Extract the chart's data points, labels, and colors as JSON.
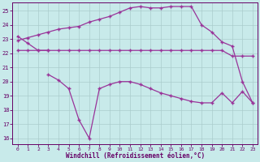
{
  "background_color": "#c8eaea",
  "grid_color": "#aacccc",
  "line_color": "#993399",
  "xlabel": "Windchill (Refroidissement éolien,°C)",
  "xlabel_color": "#660066",
  "tick_color": "#660066",
  "xlim_min": -0.5,
  "xlim_max": 23.5,
  "ylim_min": 15.6,
  "ylim_max": 25.6,
  "yticks": [
    16,
    17,
    18,
    19,
    20,
    21,
    22,
    23,
    24,
    25
  ],
  "xticks": [
    0,
    1,
    2,
    3,
    4,
    5,
    6,
    7,
    8,
    9,
    10,
    11,
    12,
    13,
    14,
    15,
    16,
    17,
    18,
    19,
    20,
    21,
    22,
    23
  ],
  "line1_x": [
    0,
    1,
    2,
    3
  ],
  "line1_y": [
    23.2,
    22.7,
    22.2,
    22.2
  ],
  "line2_x": [
    0,
    1,
    2,
    3,
    4,
    5,
    6,
    7,
    8,
    9,
    10,
    11,
    12,
    13,
    14,
    15,
    16,
    17,
    18,
    19,
    20,
    21,
    22,
    23
  ],
  "line2_y": [
    22.2,
    22.2,
    22.2,
    22.2,
    22.2,
    22.2,
    22.2,
    22.2,
    22.2,
    22.2,
    22.2,
    22.2,
    22.2,
    22.2,
    22.2,
    22.2,
    22.2,
    22.2,
    22.2,
    22.2,
    22.2,
    21.8,
    21.8,
    21.8
  ],
  "line3_x": [
    3,
    4,
    5,
    6,
    7,
    8,
    9,
    10,
    11,
    12,
    13,
    14,
    15,
    16,
    17,
    18,
    19,
    20,
    21,
    22,
    23
  ],
  "line3_y": [
    20.5,
    20.1,
    19.5,
    17.3,
    16.0,
    19.5,
    19.8,
    20.0,
    20.0,
    19.8,
    19.5,
    19.2,
    19.0,
    18.8,
    18.6,
    18.5,
    18.5,
    19.2,
    18.5,
    19.3,
    18.5
  ],
  "line4_x": [
    0,
    1,
    2,
    3,
    4,
    5,
    6,
    7,
    8,
    9,
    10,
    11,
    12,
    13,
    14,
    15,
    16,
    17,
    18,
    19,
    20,
    21,
    22,
    23
  ],
  "line4_y": [
    22.9,
    23.1,
    23.3,
    23.5,
    23.7,
    23.8,
    23.9,
    24.2,
    24.4,
    24.6,
    24.9,
    25.2,
    25.3,
    25.2,
    25.2,
    25.3,
    25.3,
    25.3,
    24.0,
    23.5,
    22.8,
    22.5,
    20.0,
    18.5
  ]
}
